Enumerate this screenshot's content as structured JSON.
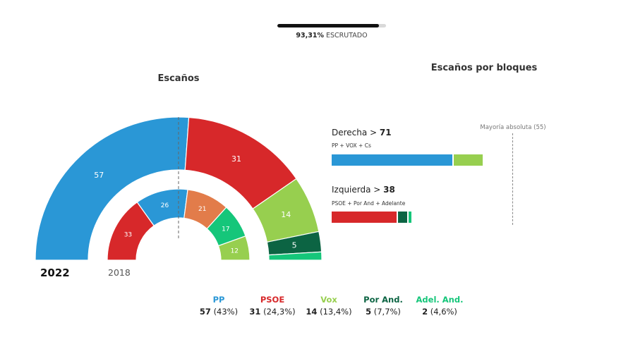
{
  "progress": {
    "value": "93,31%",
    "label": "ESCRUTADO",
    "fraction": 0.9331
  },
  "titles": {
    "escanos": "Escaños",
    "bloques": "Escaños por bloques"
  },
  "years": {
    "current": "2022",
    "previous": "2018"
  },
  "chart_data": [
    {
      "type": "semicircle-donut",
      "title": "Escaños",
      "total_seats": 109,
      "rings": [
        {
          "name": "2022",
          "series": [
            {
              "name": "PP",
              "value": 57,
              "color": "#2a97d6"
            },
            {
              "name": "PSOE",
              "value": 31,
              "color": "#d7282a"
            },
            {
              "name": "Vox",
              "value": 14,
              "color": "#97cf4f"
            },
            {
              "name": "Por And.",
              "value": 5,
              "color": "#0c6443"
            },
            {
              "name": "Adel. And.",
              "value": 2,
              "color": "#15c67a"
            }
          ]
        },
        {
          "name": "2018",
          "series": [
            {
              "name": "PSOE",
              "value": 33,
              "color": "#d7282a"
            },
            {
              "name": "PP",
              "value": 26,
              "color": "#2a97d6"
            },
            {
              "name": "Cs",
              "value": 21,
              "color": "#e27c4a"
            },
            {
              "name": "Adelante",
              "value": 17,
              "color": "#15c67a"
            },
            {
              "name": "Vox",
              "value": 12,
              "color": "#97cf4f"
            }
          ]
        }
      ]
    },
    {
      "type": "bar",
      "title": "Escaños por bloques",
      "stacked": true,
      "xlim": [
        0,
        109
      ],
      "reference_line": {
        "label": "Mayoría absoluta (55)",
        "value": 55
      },
      "blocks": [
        {
          "name": "Derecha",
          "total": 71,
          "members": "PP + VOX + Cs",
          "segments": [
            {
              "name": "PP",
              "value": 57,
              "color": "#2a97d6"
            },
            {
              "name": "Vox",
              "value": 14,
              "color": "#97cf4f"
            }
          ]
        },
        {
          "name": "Izquierda",
          "total": 38,
          "members": "PSOE + Por And + Adelante",
          "segments": [
            {
              "name": "PSOE",
              "value": 31,
              "color": "#d7282a"
            },
            {
              "name": "Por And.",
              "value": 5,
              "color": "#0c6443"
            },
            {
              "name": "Adel. And.",
              "value": 2,
              "color": "#15c67a"
            }
          ]
        }
      ]
    }
  ],
  "legend": [
    {
      "party": "PP",
      "seats": "57",
      "pct": "(43%)",
      "color": "#2a97d6"
    },
    {
      "party": "PSOE",
      "seats": "31",
      "pct": "(24,3%)",
      "color": "#d7282a"
    },
    {
      "party": "Vox",
      "seats": "14",
      "pct": "(13,4%)",
      "color": "#97cf4f"
    },
    {
      "party": "Por And.",
      "seats": "5",
      "pct": "(7,7%)",
      "color": "#0c6443"
    },
    {
      "party": "Adel. And.",
      "seats": "2",
      "pct": "(4,6%)",
      "color": "#15c67a"
    }
  ]
}
